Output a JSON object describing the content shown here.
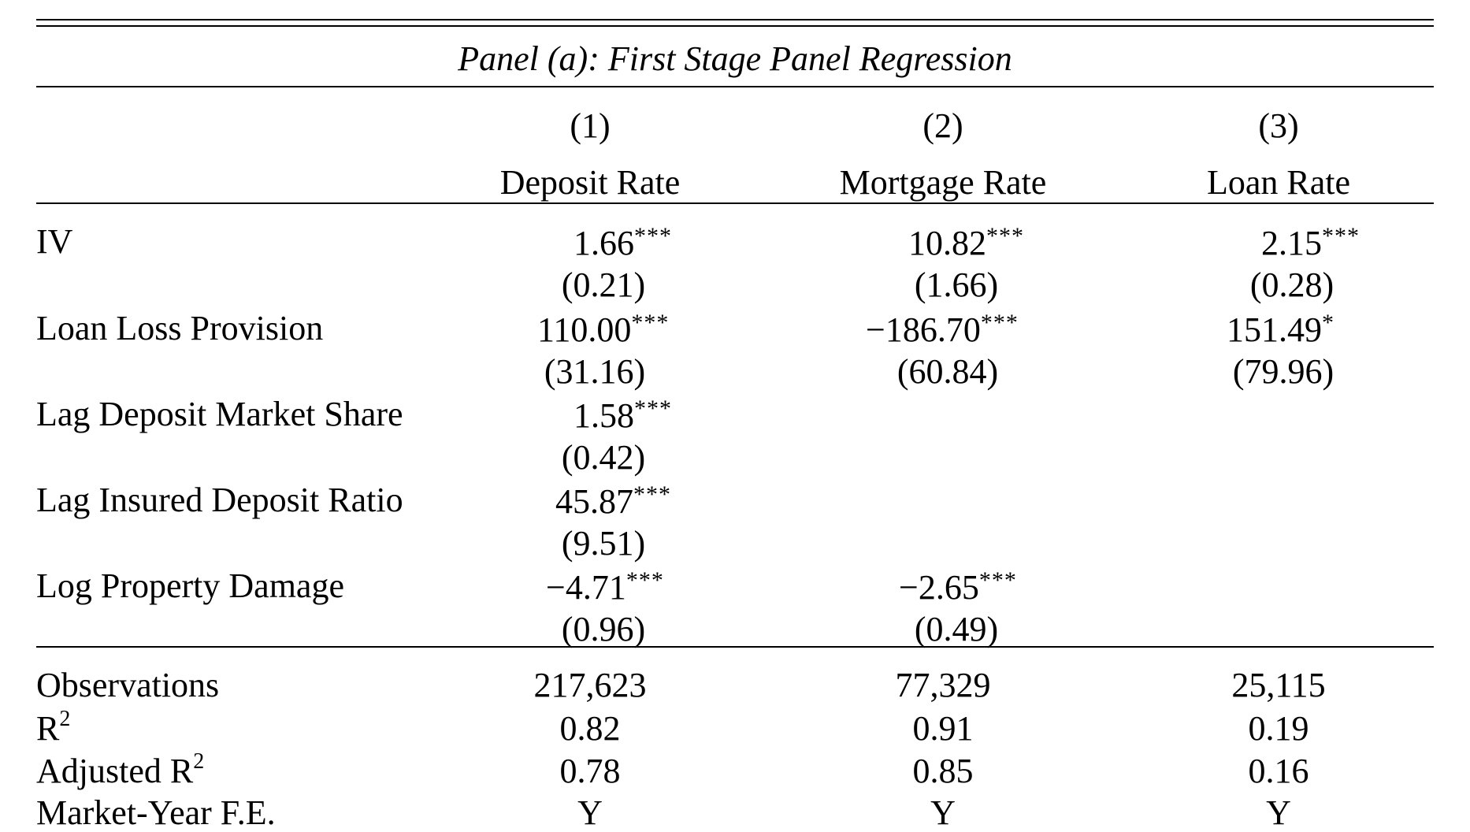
{
  "table": {
    "title": "Panel (a): First Stage Panel Regression",
    "columns": [
      {
        "number": "(1)",
        "label": "Deposit Rate"
      },
      {
        "number": "(2)",
        "label": "Mortgage Rate"
      },
      {
        "number": "(3)",
        "label": "Loan Rate"
      }
    ],
    "rows": [
      {
        "label": "IV",
        "cells": [
          {
            "coef": "1.66",
            "stars": "***",
            "se": "(0.21)"
          },
          {
            "coef": "10.82",
            "stars": "***",
            "se": "(1.66)"
          },
          {
            "coef": "2.15",
            "stars": "***",
            "se": "(0.28)"
          }
        ]
      },
      {
        "label": "Loan Loss Provision",
        "cells": [
          {
            "coef": "110.00",
            "stars": "***",
            "se": "(31.16)"
          },
          {
            "coef": "−186.70",
            "stars": "***",
            "se": "(60.84)"
          },
          {
            "coef": "151.49",
            "stars": "*",
            "se": "(79.96)"
          }
        ]
      },
      {
        "label": "Lag Deposit Market Share",
        "cells": [
          {
            "coef": "1.58",
            "stars": "***",
            "se": "(0.42)"
          }
        ]
      },
      {
        "label": "Lag Insured Deposit Ratio",
        "cells": [
          {
            "coef": "45.87",
            "stars": "***",
            "se": "(9.51)"
          }
        ]
      },
      {
        "label": "Log Property Damage",
        "cells": [
          {
            "coef": "−4.71",
            "stars": "***",
            "se": "(0.96)"
          },
          {
            "coef": "−2.65",
            "stars": "***",
            "se": "(0.49)"
          }
        ]
      }
    ],
    "stats": [
      {
        "label": "Observations",
        "values": [
          "217,623",
          "77,329",
          "25,115"
        ]
      },
      {
        "label": "R",
        "sup": "2",
        "values": [
          "0.82",
          "0.91",
          "0.19"
        ]
      },
      {
        "label": "Adjusted R",
        "sup": "2",
        "values": [
          "0.78",
          "0.85",
          "0.16"
        ]
      },
      {
        "label": "Market-Year F.E.",
        "values": [
          "Y",
          "Y",
          "Y"
        ]
      }
    ]
  }
}
